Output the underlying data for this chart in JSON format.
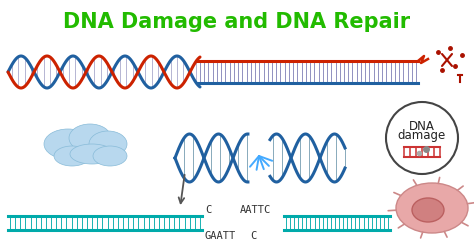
{
  "title": "DNA Damage and DNA Repair",
  "title_color": "#22bb00",
  "title_fontsize": 15,
  "bg_color": "#ffffff",
  "dna_blue": "#2060a0",
  "dna_red": "#cc2200",
  "dna_teal": "#00aaaa",
  "arrow_color": "#555555",
  "circle_color": "#444444",
  "damage_text_line1": "DNA",
  "damage_text_line2": "damage",
  "sequence_left_top": "C",
  "sequence_left_bottom": "GAATT",
  "sequence_right_top": "AATTC",
  "sequence_right_bottom": "C",
  "cloud_color": "#b8d8ee",
  "cloud_edge": "#88bbd8",
  "cell_color": "#e8a8a8",
  "cell_edge": "#cc8888",
  "spark_color": "#44aaff",
  "scissors_color": "#aa1100"
}
